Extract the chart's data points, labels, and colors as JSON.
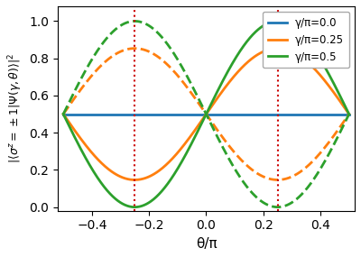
{
  "theta_min": -0.5,
  "theta_max": 0.5,
  "npoints": 1000,
  "gamma_values": [
    0.0,
    0.25,
    0.5
  ],
  "colors": [
    "#1f77b4",
    "#ff7f0e",
    "#2ca02c"
  ],
  "legend_labels": [
    "γ/π=0.0",
    "γ/π=0.25",
    "γ/π=0.5"
  ],
  "vline_positions": [
    -0.25,
    0.25
  ],
  "vline_color": "#cc0000",
  "xlabel": "θ/π",
  "ylim": [
    -0.02,
    1.08
  ],
  "xlim": [
    -0.52,
    0.52
  ],
  "linewidth": 2.0,
  "figsize": [
    4.0,
    2.85
  ],
  "dpi": 100,
  "xticks": [
    -0.4,
    -0.2,
    0.0,
    0.2,
    0.4
  ],
  "yticks": [
    0.0,
    0.2,
    0.4,
    0.6,
    0.8,
    1.0
  ]
}
